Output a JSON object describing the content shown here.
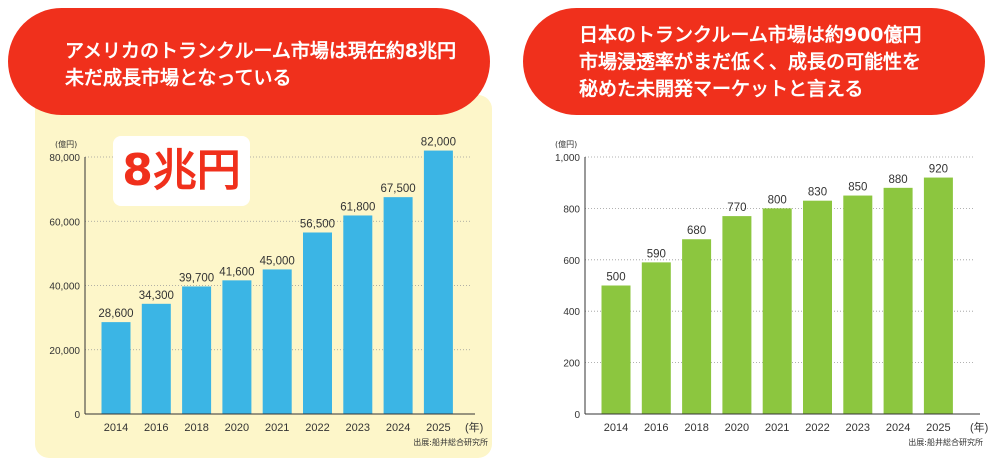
{
  "left_panel": {
    "headline": [
      "アメリカのトランクルーム市場は現在約8兆円",
      "未だ成長市場となっている"
    ],
    "badge": "8兆円",
    "panel_color": "#fdf6c9"
  },
  "right_panel": {
    "headline": [
      "日本のトランクルーム市場は約900億円",
      "市場浸透率がまだ低く、成長の可能性を",
      "秘めた未開発マーケットと言える"
    ]
  },
  "pill_color": "#f0301c",
  "chart_data": [
    {
      "type": "bar",
      "categories": [
        "2014",
        "2016",
        "2018",
        "2020",
        "2021",
        "2022",
        "2023",
        "2024",
        "2025"
      ],
      "values": [
        28600,
        34300,
        39700,
        41600,
        45000,
        56500,
        61800,
        67500,
        82000
      ],
      "value_labels": [
        "28,600",
        "34,300",
        "39,700",
        "41,600",
        "45,000",
        "56,500",
        "61,800",
        "67,500",
        "82,000"
      ],
      "ylabel": "(億円)",
      "xlabel": "(年)",
      "ylim": [
        0,
        80000
      ],
      "yticks": [
        0,
        20000,
        40000,
        60000,
        80000
      ],
      "ytick_labels": [
        "0",
        "20,000",
        "40,000",
        "60,000",
        "80,000"
      ],
      "grid": true,
      "bar_color": "#3bb5e5",
      "source": "出展:船井総合研究所"
    },
    {
      "type": "bar",
      "categories": [
        "2014",
        "2016",
        "2018",
        "2020",
        "2021",
        "2022",
        "2023",
        "2024",
        "2025"
      ],
      "values": [
        500,
        590,
        680,
        770,
        800,
        830,
        850,
        880,
        920
      ],
      "value_labels": [
        "500",
        "590",
        "680",
        "770",
        "800",
        "830",
        "850",
        "880",
        "920"
      ],
      "ylabel": "(億円)",
      "xlabel": "(年)",
      "ylim": [
        0,
        1000
      ],
      "yticks": [
        0,
        200,
        400,
        600,
        800,
        1000
      ],
      "ytick_labels": [
        "0",
        "200",
        "400",
        "600",
        "800",
        "1,000"
      ],
      "grid": true,
      "bar_color": "#8cc63f",
      "source": "出展:船井総合研究所"
    }
  ]
}
